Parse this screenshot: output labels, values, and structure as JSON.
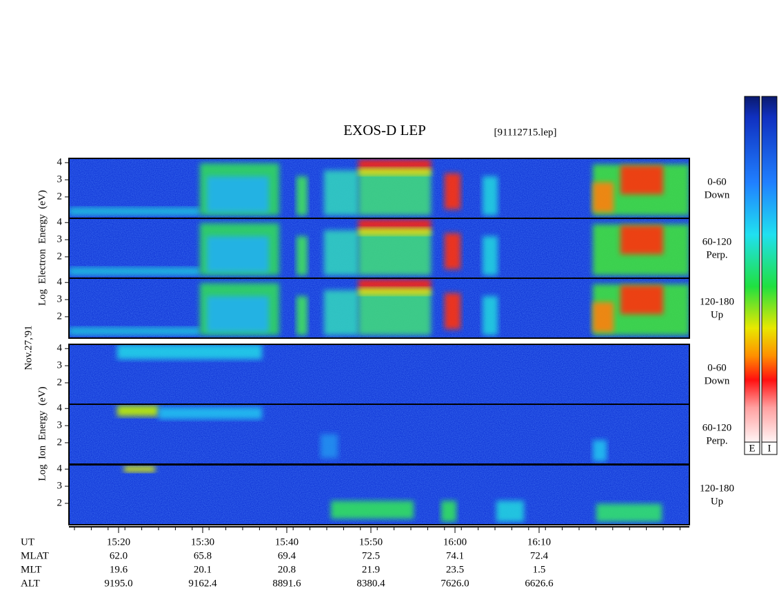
{
  "header": {
    "title": "EXOS-D LEP",
    "file": "[91112715.lep]"
  },
  "date": "Nov.27,'91",
  "ylim": [
    0.75,
    4.25
  ],
  "yticks": [
    2,
    3,
    4
  ],
  "electron": {
    "axis_label": "Log  Electron  Energy  (eV)",
    "panels": [
      {
        "range": "0-60",
        "dir": "Down"
      },
      {
        "range": "60-120",
        "dir": "Perp."
      },
      {
        "range": "120-180",
        "dir": "Up"
      }
    ]
  },
  "ion": {
    "axis_label": "Log  Ion  Energy  (eV)",
    "panels": [
      {
        "range": "0-60",
        "dir": "Down"
      },
      {
        "range": "60-120",
        "dir": "Perp."
      },
      {
        "range": "120-180",
        "dir": "Up"
      }
    ]
  },
  "ephemeris": {
    "rows": [
      [
        "UT",
        "15:20",
        "15:30",
        "15:40",
        "15:50",
        "16:00",
        "16:10"
      ],
      [
        "MLAT",
        "62.0",
        "65.8",
        "69.4",
        "72.5",
        "74.1",
        "72.4"
      ],
      [
        "MLT",
        "19.6",
        "20.1",
        "20.8",
        "21.9",
        "23.5",
        "1.5"
      ],
      [
        "ALT",
        "9195.0",
        "9162.4",
        "8891.6",
        "8380.4",
        "7626.0",
        "6626.6"
      ]
    ]
  },
  "colorbars": [
    "E",
    "I"
  ]
}
